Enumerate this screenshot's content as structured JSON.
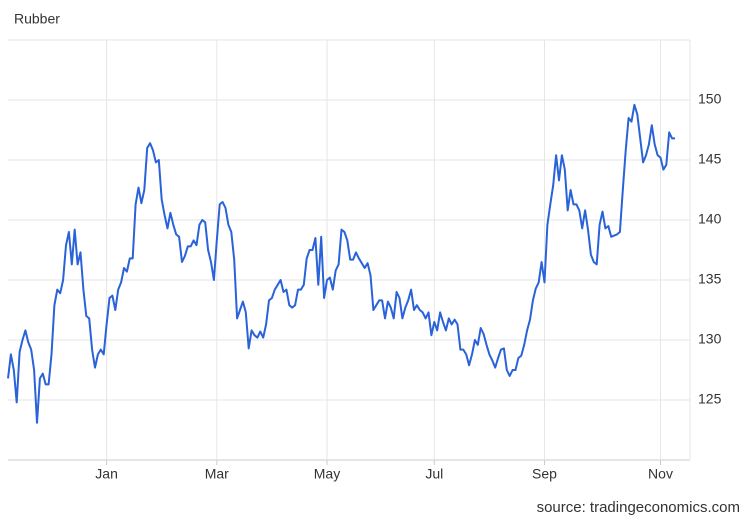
{
  "chart_data": {
    "type": "line",
    "title": "Rubber",
    "source": "source: tradingeconomics.com",
    "categories": [
      null,
      null,
      null,
      null,
      null,
      null,
      null,
      null,
      null,
      null,
      null,
      null,
      null,
      null,
      null,
      null,
      null,
      null,
      null,
      null,
      null,
      null,
      null,
      null,
      null,
      null,
      null,
      null,
      null,
      null,
      null,
      null,
      null,
      null,
      "Jan",
      null,
      null,
      null,
      null,
      null,
      null,
      null,
      null,
      null,
      null,
      null,
      null,
      null,
      null,
      null,
      null,
      null,
      null,
      null,
      null,
      null,
      null,
      null,
      null,
      null,
      null,
      null,
      null,
      null,
      null,
      null,
      null,
      null,
      null,
      null,
      null,
      null,
      "Mar",
      null,
      null,
      null,
      null,
      null,
      null,
      null,
      null,
      null,
      null,
      null,
      null,
      null,
      null,
      null,
      null,
      null,
      null,
      null,
      null,
      null,
      null,
      null,
      null,
      null,
      null,
      null,
      null,
      null,
      null,
      null,
      null,
      null,
      null,
      null,
      null,
      null,
      "May",
      null,
      null,
      null,
      null,
      null,
      null,
      null,
      null,
      null,
      null,
      null,
      null,
      null,
      null,
      null,
      null,
      null,
      null,
      null,
      null,
      null,
      null,
      null,
      null,
      null,
      null,
      null,
      null,
      null,
      null,
      null,
      null,
      null,
      null,
      null,
      null,
      "Jul",
      null,
      null,
      null,
      null,
      null,
      null,
      null,
      null,
      null,
      null,
      null,
      null,
      null,
      null,
      null,
      null,
      null,
      null,
      null,
      null,
      null,
      null,
      null,
      null,
      null,
      null,
      null,
      null,
      null,
      null,
      null,
      null,
      null,
      null,
      null,
      null,
      null,
      "Sep",
      null,
      null,
      null,
      null,
      null,
      null,
      null,
      null,
      null,
      null,
      null,
      null,
      null,
      null,
      null,
      null,
      null,
      null,
      null,
      null,
      null,
      null,
      null,
      null,
      null,
      null,
      null,
      null,
      null,
      null,
      null,
      null,
      null,
      null,
      null,
      null,
      null,
      null,
      null,
      "Nov",
      null,
      null,
      null,
      null,
      null
    ],
    "series": [
      {
        "name": "Rubber",
        "color": "#2962d9",
        "values": [
          126.8,
          128.8,
          127.5,
          124.8,
          129.0,
          130.0,
          130.8,
          129.8,
          129.2,
          127.5,
          123.1,
          126.8,
          127.2,
          126.3,
          126.3,
          128.8,
          132.9,
          134.2,
          133.9,
          135.0,
          137.9,
          139.0,
          136.3,
          139.2,
          136.3,
          137.3,
          134.2,
          132.0,
          131.8,
          129.2,
          127.7,
          128.8,
          129.2,
          128.8,
          131.3,
          133.5,
          133.7,
          132.5,
          134.2,
          134.8,
          136.0,
          135.7,
          136.8,
          136.8,
          141.3,
          142.7,
          141.4,
          142.5,
          146.0,
          146.4,
          145.8,
          144.8,
          145.0,
          141.7,
          140.4,
          139.3,
          140.6,
          139.6,
          138.8,
          138.6,
          136.5,
          137.0,
          137.8,
          137.8,
          138.3,
          137.9,
          139.6,
          140.0,
          139.8,
          137.5,
          136.5,
          135.0,
          138.3,
          141.3,
          141.5,
          141.0,
          139.6,
          139.0,
          136.7,
          131.8,
          132.5,
          133.2,
          132.3,
          129.3,
          130.8,
          130.4,
          130.2,
          130.7,
          130.2,
          131.3,
          133.3,
          133.5,
          134.2,
          134.6,
          135.0,
          134.0,
          134.2,
          132.9,
          132.7,
          132.9,
          134.2,
          134.2,
          134.6,
          136.8,
          137.5,
          137.5,
          138.5,
          134.6,
          138.6,
          133.5,
          135.0,
          135.2,
          134.2,
          135.8,
          136.3,
          139.2,
          139.0,
          138.3,
          136.7,
          136.7,
          137.3,
          136.8,
          136.4,
          136.0,
          136.4,
          135.4,
          132.5,
          132.9,
          133.3,
          133.3,
          131.8,
          133.2,
          132.7,
          131.8,
          134.0,
          133.5,
          131.8,
          132.7,
          133.3,
          134.2,
          132.5,
          132.9,
          132.5,
          132.3,
          131.8,
          132.3,
          130.4,
          131.5,
          130.8,
          132.3,
          131.5,
          130.8,
          131.8,
          131.3,
          131.7,
          131.3,
          129.2,
          129.2,
          128.8,
          127.9,
          128.8,
          130.0,
          129.6,
          131.0,
          130.5,
          129.6,
          128.8,
          128.3,
          127.7,
          128.5,
          129.2,
          129.3,
          127.5,
          127.0,
          127.5,
          127.5,
          128.5,
          128.7,
          129.6,
          130.8,
          131.7,
          133.3,
          134.3,
          134.8,
          136.5,
          134.8,
          139.6,
          141.3,
          142.9,
          145.4,
          143.3,
          145.4,
          144.2,
          140.8,
          142.5,
          141.3,
          141.3,
          140.8,
          139.3,
          140.8,
          139.2,
          137.1,
          136.5,
          136.3,
          139.6,
          140.7,
          139.3,
          139.5,
          138.6,
          138.7,
          138.8,
          139.0,
          142.5,
          145.8,
          148.5,
          148.2,
          149.6,
          148.8,
          146.8,
          144.8,
          145.4,
          146.3,
          147.9,
          146.3,
          145.4,
          145.2,
          144.2,
          144.6,
          147.3,
          146.8,
          146.8
        ]
      }
    ],
    "ylim": [
      120,
      155
    ],
    "yticks": [
      125,
      130,
      135,
      140,
      145,
      150
    ],
    "grid": true
  }
}
